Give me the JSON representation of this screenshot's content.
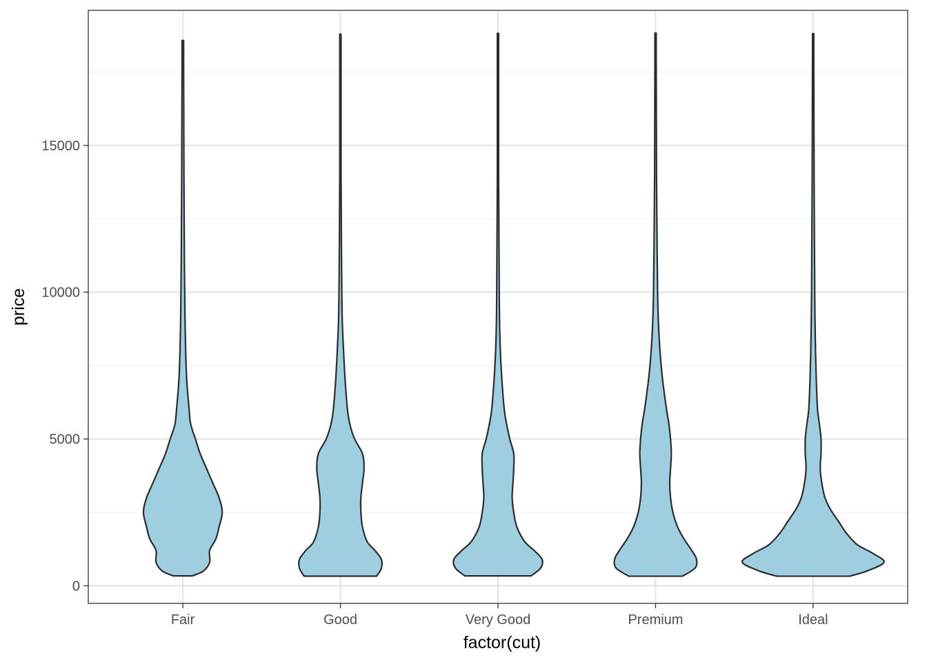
{
  "chart_data": {
    "type": "violin",
    "xlabel": "factor(cut)",
    "ylabel": "price",
    "categories": [
      "Fair",
      "Good",
      "Very Good",
      "Premium",
      "Ideal"
    ],
    "ylim": [
      -600,
      19600
    ],
    "yticks": [
      0,
      5000,
      10000,
      15000
    ],
    "grid": true,
    "colors": {
      "fill": "#9ecfe1",
      "stroke": "#2b2b2b",
      "grid_major": "#e5e5e5",
      "grid_minor": "#f0f0f0",
      "panel_border": "#333333"
    },
    "violins": [
      {
        "category": "Fair",
        "min": 337,
        "max": 18574,
        "profile": [
          [
            337,
            0.06
          ],
          [
            500,
            0.13
          ],
          [
            800,
            0.17
          ],
          [
            1200,
            0.17
          ],
          [
            1600,
            0.21
          ],
          [
            2000,
            0.23
          ],
          [
            2500,
            0.25
          ],
          [
            3000,
            0.23
          ],
          [
            3500,
            0.19
          ],
          [
            4000,
            0.15
          ],
          [
            4500,
            0.11
          ],
          [
            5000,
            0.08
          ],
          [
            5500,
            0.05
          ],
          [
            6000,
            0.04
          ],
          [
            7000,
            0.025
          ],
          [
            8000,
            0.018
          ],
          [
            9000,
            0.014
          ],
          [
            10000,
            0.012
          ],
          [
            11000,
            0.01
          ],
          [
            12000,
            0.009
          ],
          [
            13000,
            0.008
          ],
          [
            14000,
            0.007
          ],
          [
            16000,
            0.006
          ],
          [
            17500,
            0.005
          ],
          [
            18574,
            0.005
          ]
        ]
      },
      {
        "category": "Good",
        "min": 327,
        "max": 18788,
        "profile": [
          [
            327,
            0.23
          ],
          [
            600,
            0.26
          ],
          [
            900,
            0.26
          ],
          [
            1200,
            0.22
          ],
          [
            1500,
            0.17
          ],
          [
            2000,
            0.14
          ],
          [
            2500,
            0.13
          ],
          [
            3000,
            0.13
          ],
          [
            3500,
            0.14
          ],
          [
            4000,
            0.15
          ],
          [
            4500,
            0.14
          ],
          [
            5000,
            0.09
          ],
          [
            5500,
            0.06
          ],
          [
            6000,
            0.045
          ],
          [
            7000,
            0.03
          ],
          [
            8000,
            0.02
          ],
          [
            9000,
            0.012
          ],
          [
            10000,
            0.009
          ],
          [
            12000,
            0.006
          ],
          [
            14000,
            0.004
          ],
          [
            16000,
            0.004
          ],
          [
            18000,
            0.004
          ],
          [
            18788,
            0.004
          ]
        ]
      },
      {
        "category": "Very Good",
        "min": 336,
        "max": 18818,
        "profile": [
          [
            336,
            0.21
          ],
          [
            600,
            0.27
          ],
          [
            900,
            0.28
          ],
          [
            1200,
            0.23
          ],
          [
            1500,
            0.17
          ],
          [
            2000,
            0.12
          ],
          [
            2500,
            0.1
          ],
          [
            3000,
            0.09
          ],
          [
            3500,
            0.095
          ],
          [
            4000,
            0.1
          ],
          [
            4500,
            0.1
          ],
          [
            5000,
            0.075
          ],
          [
            5500,
            0.055
          ],
          [
            6000,
            0.04
          ],
          [
            7000,
            0.025
          ],
          [
            8000,
            0.015
          ],
          [
            9000,
            0.01
          ],
          [
            10000,
            0.008
          ],
          [
            12000,
            0.006
          ],
          [
            14000,
            0.004
          ],
          [
            16000,
            0.004
          ],
          [
            18000,
            0.004
          ],
          [
            18818,
            0.004
          ]
        ]
      },
      {
        "category": "Premium",
        "min": 326,
        "max": 18823,
        "profile": [
          [
            326,
            0.17
          ],
          [
            600,
            0.25
          ],
          [
            900,
            0.26
          ],
          [
            1200,
            0.23
          ],
          [
            1600,
            0.18
          ],
          [
            2000,
            0.14
          ],
          [
            2500,
            0.11
          ],
          [
            3000,
            0.095
          ],
          [
            3500,
            0.09
          ],
          [
            4000,
            0.095
          ],
          [
            4500,
            0.1
          ],
          [
            5000,
            0.095
          ],
          [
            5500,
            0.085
          ],
          [
            6000,
            0.07
          ],
          [
            7000,
            0.045
          ],
          [
            8000,
            0.028
          ],
          [
            9000,
            0.018
          ],
          [
            10000,
            0.013
          ],
          [
            12000,
            0.009
          ],
          [
            14000,
            0.006
          ],
          [
            16000,
            0.005
          ],
          [
            18000,
            0.004
          ],
          [
            18823,
            0.004
          ]
        ]
      },
      {
        "category": "Ideal",
        "min": 326,
        "max": 18806,
        "profile": [
          [
            326,
            0.23
          ],
          [
            500,
            0.34
          ],
          [
            800,
            0.45
          ],
          [
            1100,
            0.38
          ],
          [
            1400,
            0.28
          ],
          [
            1800,
            0.21
          ],
          [
            2200,
            0.16
          ],
          [
            2600,
            0.11
          ],
          [
            3000,
            0.075
          ],
          [
            3500,
            0.055
          ],
          [
            4000,
            0.045
          ],
          [
            4500,
            0.05
          ],
          [
            5000,
            0.05
          ],
          [
            5500,
            0.04
          ],
          [
            6000,
            0.028
          ],
          [
            7000,
            0.02
          ],
          [
            8000,
            0.015
          ],
          [
            9000,
            0.012
          ],
          [
            10000,
            0.01
          ],
          [
            12000,
            0.008
          ],
          [
            14000,
            0.006
          ],
          [
            16000,
            0.005
          ],
          [
            18000,
            0.004
          ],
          [
            18806,
            0.004
          ]
        ]
      }
    ]
  }
}
